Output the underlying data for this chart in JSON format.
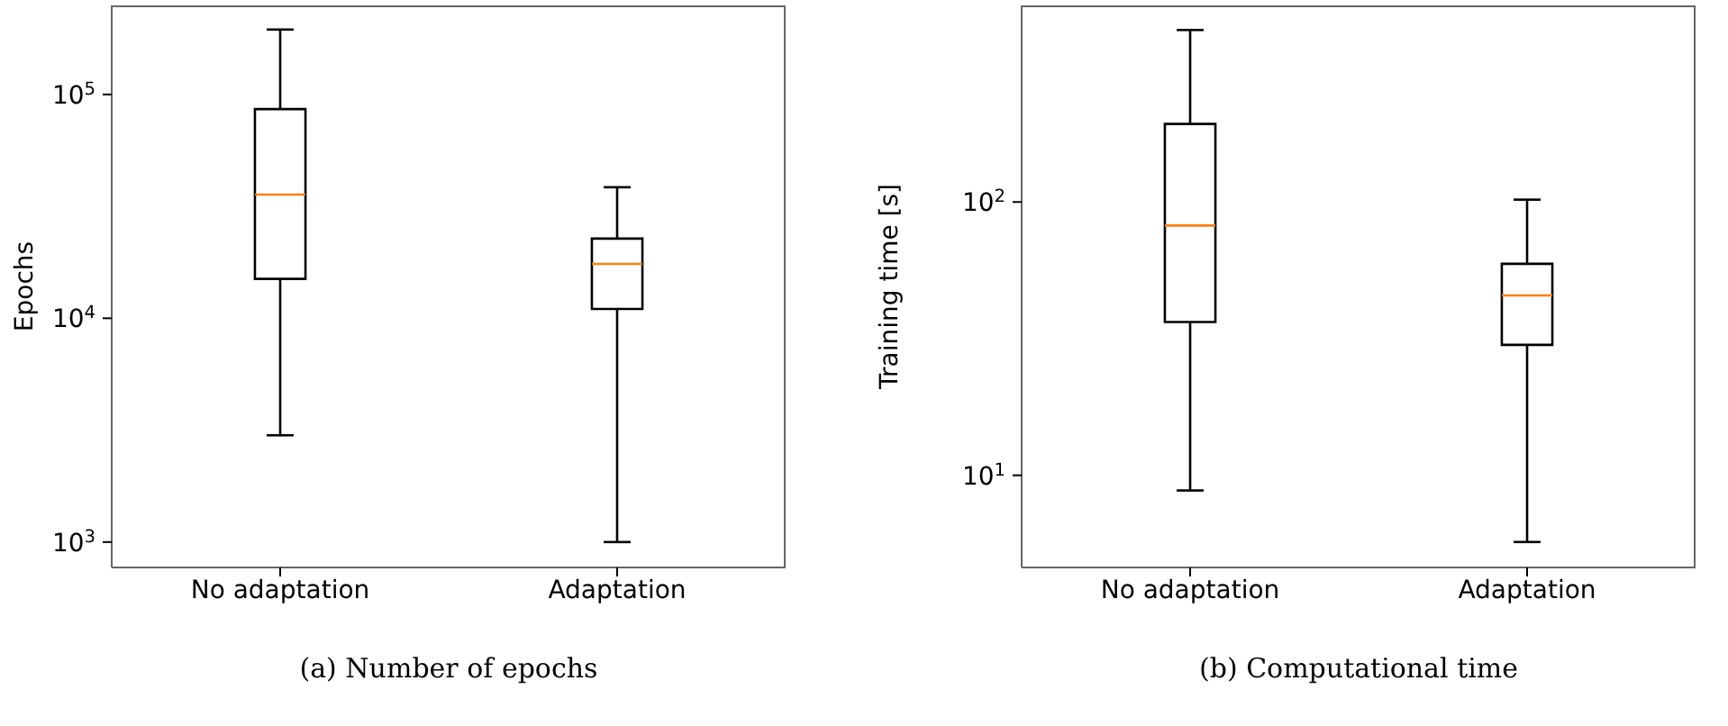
{
  "chart_data": [
    {
      "type": "box",
      "title": "(a) Number of epochs",
      "ylabel": "Epochs",
      "categories": [
        "No adaptation",
        "Adaptation"
      ],
      "log": "y",
      "ylim": [
        770,
        250000
      ],
      "yticks": [
        {
          "value": 1000,
          "label": "10$^{3}$"
        },
        {
          "value": 10000,
          "label": "10$^{4}$"
        },
        {
          "value": 100000,
          "label": "10$^{5}$"
        }
      ],
      "boxes": [
        {
          "low": 3000,
          "q1": 15000,
          "median": 35700,
          "q3": 86000,
          "high": 195000
        },
        {
          "low": 1000,
          "q1": 11000,
          "median": 17500,
          "q3": 22700,
          "high": 38500
        }
      ]
    },
    {
      "type": "box",
      "title": "(b) Computational time",
      "ylabel": "Training time [s]",
      "categories": [
        "No adaptation",
        "Adaptation"
      ],
      "log": "y",
      "ylim": [
        4.6,
        524
      ],
      "yticks": [
        {
          "value": 10,
          "label": "10$^{1}$"
        },
        {
          "value": 100,
          "label": "10$^{2}$"
        }
      ],
      "boxes": [
        {
          "low": 8.8,
          "q1": 36.4,
          "median": 82,
          "q3": 193,
          "high": 426
        },
        {
          "low": 5.7,
          "q1": 30,
          "median": 45.5,
          "q3": 59.4,
          "high": 102
        }
      ]
    }
  ]
}
